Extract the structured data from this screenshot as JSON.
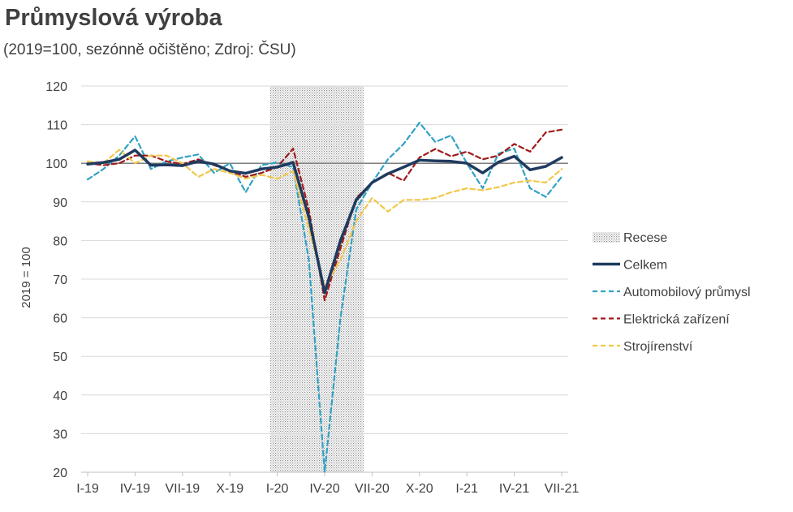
{
  "chart_data": {
    "type": "line",
    "title": "Průmyslová výroba",
    "subtitle": "(2019=100, sezónně očištěno; Zdroj: ČSU)",
    "ylabel": "2019 = 100",
    "xlabel": "",
    "ylim": [
      20,
      120
    ],
    "yticks": [
      20,
      30,
      40,
      50,
      60,
      70,
      80,
      90,
      100,
      110,
      120
    ],
    "x": [
      "I-19",
      "II-19",
      "III-19",
      "IV-19",
      "V-19",
      "VI-19",
      "VII-19",
      "VIII-19",
      "IX-19",
      "X-19",
      "XI-19",
      "XII-19",
      "I-20",
      "II-20",
      "III-20",
      "IV-20",
      "V-20",
      "VI-20",
      "VII-20",
      "VIII-20",
      "IX-20",
      "X-20",
      "XI-20",
      "XII-20",
      "I-21",
      "II-21",
      "III-21",
      "IV-21",
      "V-21",
      "VI-21",
      "VII-21"
    ],
    "xtick_labels": [
      "I-19",
      "IV-19",
      "VII-19",
      "X-19",
      "I-20",
      "IV-20",
      "VII-20",
      "X-20",
      "I-21",
      "IV-21",
      "VII-21"
    ],
    "xtick_indices": [
      0,
      3,
      6,
      9,
      12,
      15,
      18,
      21,
      24,
      27,
      30
    ],
    "reference_line": 100,
    "recession": {
      "label": "Recese",
      "from_index": 12,
      "to_index": 17
    },
    "legend_position": "right",
    "series": [
      {
        "name": "Celkem",
        "color": "#1f3a5f",
        "style": "solid",
        "values": [
          99.8,
          100.2,
          101.0,
          103.4,
          99.5,
          99.6,
          99.4,
          100.5,
          99.8,
          98.0,
          97.4,
          98.5,
          99.0,
          100.2,
          86.0,
          66.5,
          80.0,
          90.5,
          95.0,
          97.3,
          99.0,
          100.8,
          100.6,
          100.5,
          100.0,
          97.5,
          100.3,
          101.8,
          98.3,
          99.2,
          101.5
        ]
      },
      {
        "name": "Automobilový průmysl",
        "color": "#31a2c4",
        "style": "dashed",
        "values": [
          95.8,
          98.5,
          102.0,
          107.0,
          98.5,
          100.5,
          101.5,
          102.3,
          97.5,
          100.0,
          92.5,
          99.5,
          100.2,
          99.0,
          75.0,
          20.0,
          60.0,
          88.0,
          95.0,
          101.0,
          105.0,
          110.5,
          105.5,
          107.2,
          100.0,
          93.5,
          102.5,
          103.8,
          93.5,
          91.3,
          96.5
        ]
      },
      {
        "name": "Elektrická zařízení",
        "color": "#a01a1a",
        "style": "dashed",
        "values": [
          100.0,
          99.5,
          100.0,
          102.0,
          102.0,
          100.5,
          99.8,
          101.0,
          99.5,
          98.0,
          96.5,
          97.5,
          99.0,
          103.8,
          88.0,
          64.5,
          78.0,
          91.0,
          95.0,
          97.5,
          95.5,
          101.5,
          103.7,
          101.8,
          103.0,
          101.0,
          102.0,
          105.0,
          103.0,
          108.0,
          108.7
        ]
      },
      {
        "name": "Strojírenství",
        "color": "#f1c74a",
        "style": "dashed",
        "values": [
          100.5,
          100.0,
          103.5,
          100.0,
          102.0,
          102.0,
          100.0,
          96.5,
          98.5,
          97.5,
          96.0,
          97.0,
          96.0,
          98.0,
          83.0,
          68.0,
          75.0,
          85.0,
          91.0,
          87.5,
          90.5,
          90.5,
          91.0,
          92.5,
          93.5,
          93.0,
          93.8,
          95.0,
          95.5,
          95.0,
          98.5
        ]
      }
    ]
  }
}
